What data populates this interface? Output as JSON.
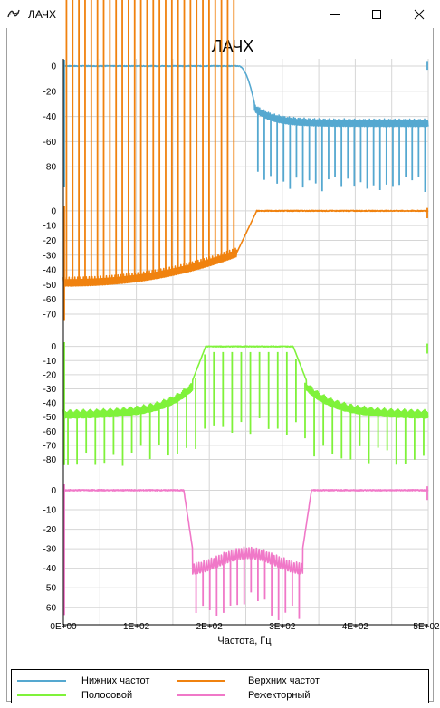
{
  "window": {
    "title": "ЛАЧХ",
    "icon": "app-logo-icon",
    "controls": [
      "minimize-icon",
      "maximize-icon",
      "close-icon"
    ]
  },
  "chart_data": {
    "type": "line",
    "title": "ЛАЧХ",
    "xlabel": "Частота, Гц",
    "x_ticks": [
      "0E+00",
      "1E+02",
      "2E+02",
      "3E+02",
      "4E+02",
      "5E+02"
    ],
    "xlim": [
      0,
      500
    ],
    "grid": true,
    "legend_position": "bottom",
    "panels": [
      {
        "series": "Нижних частот",
        "color": "#55a8d0",
        "y_ticks": [
          "0",
          "-20",
          "-40",
          "-60",
          "-80"
        ],
        "ylim": [
          -100,
          5
        ],
        "passband_db": 0,
        "stopband_floor_db": -42,
        "transition_hz": [
          240,
          262
        ],
        "notch_depth_db": -95,
        "notch_count": 27
      },
      {
        "series": "Верхних частот",
        "color": "#f0820f",
        "y_ticks": [
          "0",
          "-10",
          "-20",
          "-30",
          "-40",
          "-50",
          "-60",
          "-70"
        ],
        "ylim": [
          -78,
          3
        ],
        "passband_db": 0,
        "stopband_floor_db_start": -45,
        "stopband_floor_db_end": -25,
        "transition_hz": [
          238,
          265
        ],
        "notch_depth_db": -72,
        "notch_count": 28
      },
      {
        "series": "Полосовой",
        "color": "#7ff23a",
        "y_ticks": [
          "0",
          "-10",
          "-20",
          "-30",
          "-40",
          "-50",
          "-60",
          "-70",
          "-80"
        ],
        "ylim": [
          -88,
          3
        ],
        "passband_db": 0,
        "passband_hz": [
          195,
          315
        ],
        "stopband_floor_db": -45,
        "notch_depth_db": -80,
        "notch_count": 40
      },
      {
        "series": "Режекторный",
        "color": "#f078c8",
        "y_ticks": [
          "0",
          "-10",
          "-20",
          "-30",
          "-40",
          "-50",
          "-60"
        ],
        "ylim": [
          -68,
          3
        ],
        "passband_db": 0,
        "stopband_hz": [
          165,
          340
        ],
        "stopband_floor_db": -33,
        "notch_depth_db": -62,
        "notch_count": 16
      }
    ],
    "legend": [
      {
        "name": "Нижних частот",
        "color": "#55a8d0"
      },
      {
        "name": "Верхних частот",
        "color": "#f0820f"
      },
      {
        "name": "Полосовой",
        "color": "#7ff23a"
      },
      {
        "name": "Режекторный",
        "color": "#f078c8"
      }
    ]
  }
}
